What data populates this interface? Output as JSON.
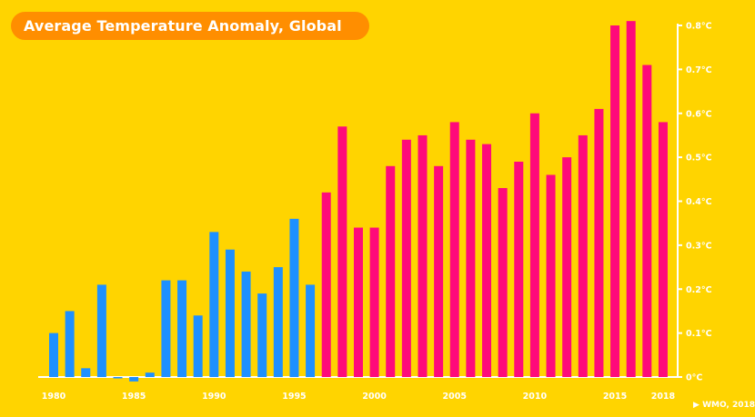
{
  "chart_data": {
    "type": "bar",
    "title": "Average Temperature Anomaly, Global",
    "source": "WMO, 2018",
    "source_marker": "▶",
    "colors": {
      "before_1997": "#1E90FF",
      "from_1997": "#FF0A7A",
      "background": "#FFD400",
      "title_bg": "#FF8E00",
      "axis": "#FFFFFF"
    },
    "ylim": [
      0,
      0.8
    ],
    "y_unit": "°C",
    "y_ticks": [
      "0°C",
      "0.1°C",
      "0.2°C",
      "0.3°C",
      "0.4°C",
      "0.5°C",
      "0.6°C",
      "0.7°C",
      "0.8°C"
    ],
    "x_ticks": [
      "1980",
      "1985",
      "1990",
      "1995",
      "2000",
      "2005",
      "2010",
      "2015",
      "2018"
    ],
    "years": [
      1980,
      1981,
      1982,
      1983,
      1984,
      1985,
      1986,
      1987,
      1988,
      1989,
      1990,
      1991,
      1992,
      1993,
      1994,
      1995,
      1996,
      1997,
      1998,
      1999,
      2000,
      2001,
      2002,
      2003,
      2004,
      2005,
      2006,
      2007,
      2008,
      2009,
      2010,
      2011,
      2012,
      2013,
      2014,
      2015,
      2016,
      2017,
      2018
    ],
    "values": [
      0.1,
      0.15,
      0.02,
      0.21,
      0.0,
      -0.01,
      0.01,
      0.22,
      0.22,
      0.14,
      0.33,
      0.29,
      0.24,
      0.19,
      0.25,
      0.36,
      0.21,
      0.42,
      0.57,
      0.34,
      0.34,
      0.48,
      0.54,
      0.55,
      0.48,
      0.58,
      0.54,
      0.53,
      0.43,
      0.49,
      0.6,
      0.46,
      0.5,
      0.55,
      0.61,
      0.8,
      0.81,
      0.71,
      0.58
    ],
    "grid": false,
    "legend": "none"
  }
}
